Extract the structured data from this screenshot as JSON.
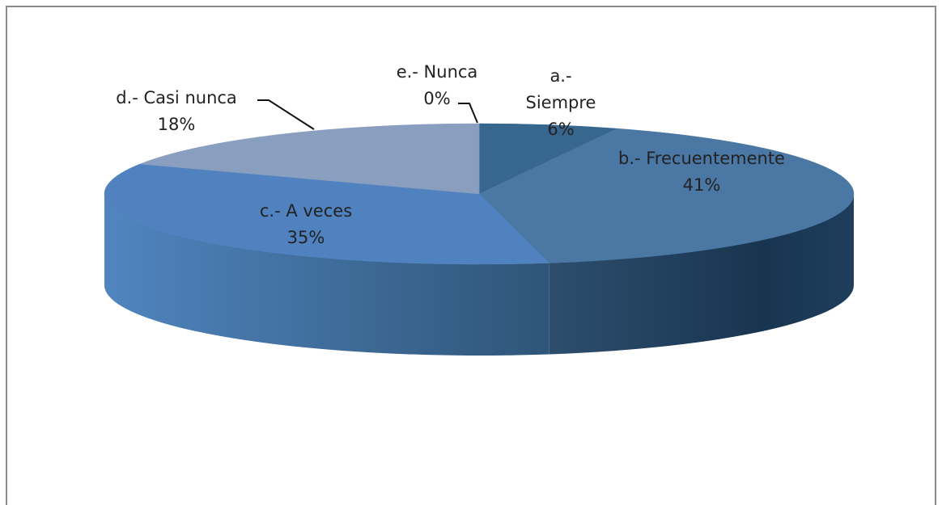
{
  "chart_data": {
    "type": "pie3d",
    "categories": [
      "a.- Siempre",
      "b.- Frecuentemente",
      "c.- A veces",
      "d.- Casi nunca",
      "e.- Nunca"
    ],
    "values": [
      6,
      41,
      35,
      18,
      0
    ],
    "value_labels": [
      "6%",
      "41%",
      "35%",
      "18%",
      "0%"
    ],
    "colors": [
      "#37668f",
      "#4a77a3",
      "#4f82be",
      "#8a9fc0",
      "#7f99c2"
    ]
  }
}
